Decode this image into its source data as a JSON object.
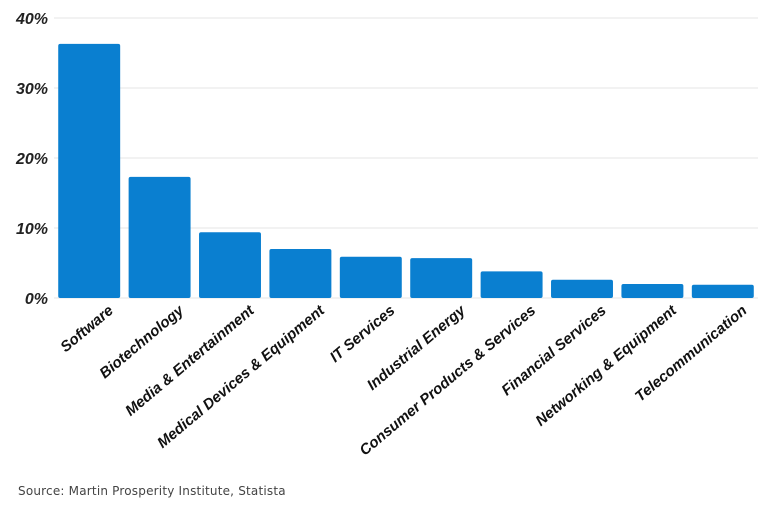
{
  "chart_data": {
    "type": "bar",
    "categories": [
      "Software",
      "Biotechnology",
      "Media & Entertainment",
      "Medical Devices & Equipment",
      "IT Services",
      "Industrial Energy",
      "Consumer Products & Services",
      "Financial Services",
      "Networking & Equipment",
      "Telecommunication"
    ],
    "values": [
      36.3,
      17.3,
      9.4,
      7.0,
      5.9,
      5.7,
      3.8,
      2.6,
      2.0,
      1.9
    ],
    "yticks": [
      "0%",
      "10%",
      "20%",
      "30%",
      "40%"
    ],
    "ylim": [
      0,
      40
    ],
    "grid": true,
    "bar_color": "#0a7fd0"
  },
  "source": "Source: Martin Prosperity Institute, Statista"
}
